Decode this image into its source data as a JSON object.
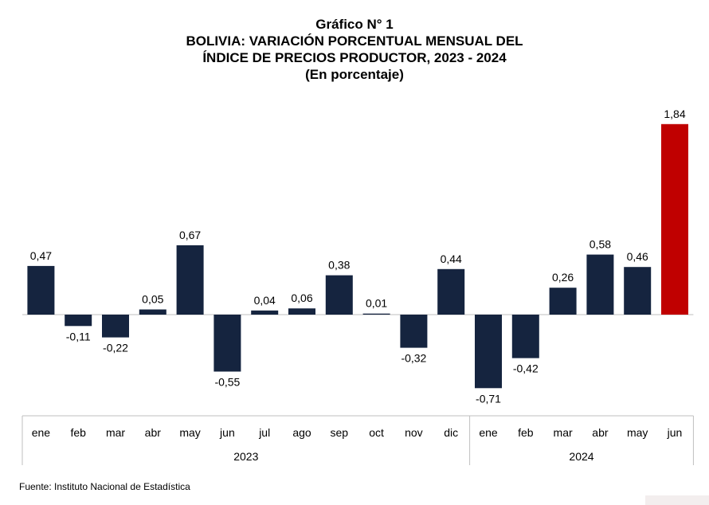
{
  "title": {
    "line1": "Gráfico N° 1",
    "line2": "BOLIVIA: VARIACIÓN PORCENTUAL MENSUAL DEL",
    "line3": "ÍNDICE DE PRECIOS PRODUCTOR, 2023 - 2024",
    "line4": "(En porcentaje)"
  },
  "source": "Fuente: Instituto Nacional de Estadística",
  "colors": {
    "bar": "#15243f",
    "highlight": "#c00000",
    "axis": "#bfbfbf"
  },
  "chart_data": {
    "type": "bar",
    "categories": [
      "ene",
      "feb",
      "mar",
      "abr",
      "may",
      "jun",
      "jul",
      "ago",
      "sep",
      "oct",
      "nov",
      "dic",
      "ene",
      "feb",
      "mar",
      "abr",
      "may",
      "jun"
    ],
    "groups": [
      {
        "label": "2023",
        "start": 0,
        "end": 11
      },
      {
        "label": "2024",
        "start": 12,
        "end": 17
      }
    ],
    "values": [
      0.47,
      -0.11,
      -0.22,
      0.05,
      0.67,
      -0.55,
      0.04,
      0.06,
      0.38,
      0.01,
      -0.32,
      0.44,
      -0.71,
      -0.42,
      0.26,
      0.58,
      0.46,
      1.84
    ],
    "value_labels": [
      "0,47",
      "-0,11",
      "-0,22",
      "0,05",
      "0,67",
      "-0,55",
      "0,04",
      "0,06",
      "0,38",
      "0,01",
      "-0,32",
      "0,44",
      "-0,71",
      "-0,42",
      "0,26",
      "0,58",
      "0,46",
      "1,84"
    ],
    "highlight_index": 17,
    "ylim": [
      -0.71,
      1.84
    ],
    "grid": false,
    "legend": "none"
  }
}
